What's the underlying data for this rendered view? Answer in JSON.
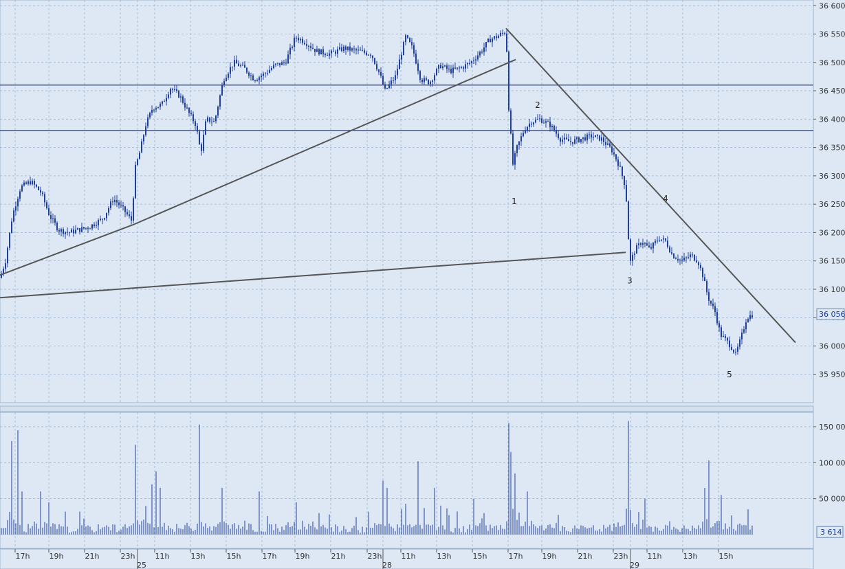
{
  "colors": {
    "background": "#dde8f4",
    "grid": "#9db3cd",
    "candle": "#1f3fa0",
    "level_line": "#1a2a8a",
    "trendline": "#555555",
    "text": "#333333"
  },
  "chart_data": [
    {
      "type": "candlestick",
      "title": "",
      "ylim": [
        35900,
        36610
      ],
      "y_ticks": [
        35950,
        36000,
        36050,
        36100,
        36150,
        36200,
        36250,
        36300,
        36350,
        36400,
        36450,
        36500,
        36550,
        36600
      ],
      "y_tick_labels": [
        "35 950",
        "36 000",
        "36 050",
        "36 100",
        "36 150",
        "36 200",
        "36 250",
        "36 300",
        "36 350",
        "36 400",
        "36 450",
        "36 500",
        "36 550",
        "36 600"
      ],
      "last_price_label": "36 056",
      "last_price": 36056,
      "horizontal_levels": [
        36460,
        36380
      ],
      "trendlines": [
        {
          "x1": 0,
          "y1": 36125,
          "x2": 196,
          "y2": 36215
        },
        {
          "x1": 196,
          "y1": 36215,
          "x2": 750,
          "y2": 36505
        },
        {
          "x1": 736,
          "y1": 36560,
          "x2": 1157,
          "y2": 36006
        },
        {
          "x1": 0,
          "y1": 36085,
          "x2": 910,
          "y2": 36165
        }
      ],
      "wave_labels": [
        {
          "label": "1",
          "x": 748,
          "y": 36250
        },
        {
          "label": "2",
          "x": 782,
          "y": 36420
        },
        {
          "label": "3",
          "x": 916,
          "y": 36110
        },
        {
          "label": "4",
          "x": 968,
          "y": 36255
        },
        {
          "label": "5",
          "x": 1061,
          "y": 35945
        }
      ],
      "close_path": [
        [
          0,
          36120
        ],
        [
          8,
          36150
        ],
        [
          18,
          36230
        ],
        [
          30,
          36280
        ],
        [
          45,
          36290
        ],
        [
          60,
          36270
        ],
        [
          72,
          36230
        ],
        [
          85,
          36205
        ],
        [
          100,
          36200
        ],
        [
          115,
          36205
        ],
        [
          130,
          36210
        ],
        [
          150,
          36225
        ],
        [
          165,
          36260
        ],
        [
          180,
          36240
        ],
        [
          192,
          36220
        ],
        [
          196,
          36310
        ],
        [
          204,
          36345
        ],
        [
          212,
          36390
        ],
        [
          222,
          36420
        ],
        [
          235,
          36425
        ],
        [
          248,
          36455
        ],
        [
          262,
          36440
        ],
        [
          275,
          36410
        ],
        [
          285,
          36390
        ],
        [
          292,
          36340
        ],
        [
          300,
          36400
        ],
        [
          312,
          36395
        ],
        [
          325,
          36470
        ],
        [
          340,
          36500
        ],
        [
          355,
          36490
        ],
        [
          370,
          36470
        ],
        [
          385,
          36480
        ],
        [
          400,
          36495
        ],
        [
          415,
          36500
        ],
        [
          430,
          36545
        ],
        [
          445,
          36535
        ],
        [
          460,
          36520
        ],
        [
          480,
          36515
        ],
        [
          500,
          36525
        ],
        [
          520,
          36520
        ],
        [
          540,
          36515
        ],
        [
          552,
          36480
        ],
        [
          560,
          36450
        ],
        [
          575,
          36475
        ],
        [
          590,
          36545
        ],
        [
          600,
          36525
        ],
        [
          612,
          36470
        ],
        [
          625,
          36465
        ],
        [
          640,
          36495
        ],
        [
          655,
          36485
        ],
        [
          670,
          36490
        ],
        [
          685,
          36500
        ],
        [
          700,
          36520
        ],
        [
          712,
          36540
        ],
        [
          722,
          36545
        ],
        [
          736,
          36555
        ],
        [
          740,
          36420
        ],
        [
          746,
          36320
        ],
        [
          752,
          36350
        ],
        [
          762,
          36380
        ],
        [
          772,
          36395
        ],
        [
          785,
          36400
        ],
        [
          800,
          36390
        ],
        [
          815,
          36365
        ],
        [
          830,
          36360
        ],
        [
          845,
          36365
        ],
        [
          860,
          36370
        ],
        [
          875,
          36365
        ],
        [
          890,
          36345
        ],
        [
          900,
          36320
        ],
        [
          910,
          36280
        ],
        [
          916,
          36145
        ],
        [
          924,
          36170
        ],
        [
          934,
          36185
        ],
        [
          945,
          36170
        ],
        [
          958,
          36190
        ],
        [
          968,
          36185
        ],
        [
          978,
          36160
        ],
        [
          992,
          36150
        ],
        [
          1005,
          36160
        ],
        [
          1015,
          36150
        ],
        [
          1022,
          36125
        ],
        [
          1030,
          36085
        ],
        [
          1040,
          36060
        ],
        [
          1048,
          36020
        ],
        [
          1056,
          36010
        ],
        [
          1063,
          36000
        ],
        [
          1070,
          35985
        ],
        [
          1078,
          36015
        ],
        [
          1086,
          36050
        ],
        [
          1095,
          36056
        ]
      ]
    },
    {
      "type": "bar",
      "title": "",
      "ylim": [
        0,
        170000
      ],
      "y_ticks": [
        50000,
        100000,
        150000
      ],
      "y_tick_labels": [
        "50 000",
        "100 000",
        "150 000"
      ],
      "last_value_label": "3 614",
      "last_value": 3614,
      "spikes": [
        {
          "x": 18,
          "value": 130000
        },
        {
          "x": 26,
          "value": 145000
        },
        {
          "x": 32,
          "value": 60000
        },
        {
          "x": 60,
          "value": 60000
        },
        {
          "x": 72,
          "value": 45000
        },
        {
          "x": 196,
          "value": 125000
        },
        {
          "x": 220,
          "value": 70000
        },
        {
          "x": 226,
          "value": 88000
        },
        {
          "x": 232,
          "value": 65000
        },
        {
          "x": 289,
          "value": 153000
        },
        {
          "x": 324,
          "value": 65000
        },
        {
          "x": 376,
          "value": 60000
        },
        {
          "x": 430,
          "value": 45000
        },
        {
          "x": 557,
          "value": 75000
        },
        {
          "x": 562,
          "value": 65000
        },
        {
          "x": 608,
          "value": 102000
        },
        {
          "x": 631,
          "value": 65000
        },
        {
          "x": 690,
          "value": 50000
        },
        {
          "x": 739,
          "value": 155000
        },
        {
          "x": 744,
          "value": 115000
        },
        {
          "x": 749,
          "value": 85000
        },
        {
          "x": 767,
          "value": 60000
        },
        {
          "x": 913,
          "value": 158000
        },
        {
          "x": 937,
          "value": 50000
        },
        {
          "x": 1024,
          "value": 65000
        },
        {
          "x": 1031,
          "value": 103000
        },
        {
          "x": 1048,
          "value": 55000
        }
      ]
    }
  ],
  "time_axis": {
    "hour_labels": [
      {
        "label": "17h",
        "x": 33
      },
      {
        "label": "19h",
        "x": 82
      },
      {
        "label": "21h",
        "x": 134
      },
      {
        "label": "23h",
        "x": 186
      },
      {
        "label": "11h",
        "x": 236
      },
      {
        "label": "13h",
        "x": 288
      },
      {
        "label": "15h",
        "x": 340
      },
      {
        "label": "17h",
        "x": 392
      },
      {
        "label": "19h",
        "x": 440
      },
      {
        "label": "21h",
        "x": 492
      },
      {
        "label": "23h",
        "x": 545
      },
      {
        "label": "11h",
        "x": 594
      },
      {
        "label": "13h",
        "x": 646
      },
      {
        "label": "15h",
        "x": 698
      },
      {
        "label": "17h",
        "x": 750
      },
      {
        "label": "19h",
        "x": 799
      },
      {
        "label": "21h",
        "x": 851
      },
      {
        "label": "23h",
        "x": 903
      },
      {
        "label": "11h",
        "x": 952
      },
      {
        "label": "13h",
        "x": 1004
      },
      {
        "label": "15h",
        "x": 1056
      }
    ],
    "day_labels": [
      {
        "label": "25",
        "x": 206
      },
      {
        "label": "28",
        "x": 563
      },
      {
        "label": "29",
        "x": 923
      }
    ]
  }
}
